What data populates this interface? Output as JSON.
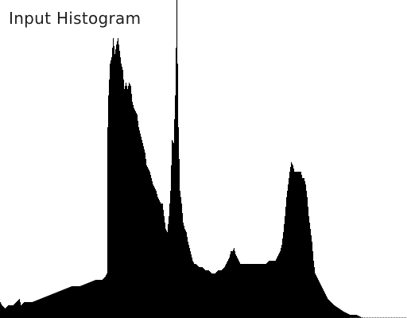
{
  "chart_data": {
    "type": "histogram",
    "title": "Input Histogram",
    "xlabel": "",
    "ylabel": "",
    "grid": false,
    "legend": "none",
    "bar_color": "#000000",
    "background_color": "#ffffff",
    "ylim": [
      0,
      100
    ],
    "keypoints": [
      [
        0,
        5
      ],
      [
        2,
        4
      ],
      [
        6,
        3
      ],
      [
        10,
        4
      ],
      [
        16,
        4
      ],
      [
        20,
        5
      ],
      [
        24,
        6
      ],
      [
        26,
        4
      ],
      [
        30,
        5
      ],
      [
        40,
        5
      ],
      [
        50,
        6
      ],
      [
        60,
        7
      ],
      [
        70,
        8
      ],
      [
        80,
        9
      ],
      [
        90,
        10
      ],
      [
        100,
        10
      ],
      [
        110,
        11
      ],
      [
        120,
        12
      ],
      [
        128,
        12
      ],
      [
        132,
        13
      ],
      [
        134,
        14
      ],
      [
        135,
        60
      ],
      [
        136,
        70
      ],
      [
        138,
        80
      ],
      [
        140,
        82
      ],
      [
        142,
        88
      ],
      [
        144,
        83
      ],
      [
        146,
        86
      ],
      [
        148,
        88
      ],
      [
        150,
        84
      ],
      [
        152,
        80
      ],
      [
        154,
        78
      ],
      [
        156,
        72
      ],
      [
        158,
        74
      ],
      [
        160,
        72
      ],
      [
        162,
        74
      ],
      [
        164,
        73
      ],
      [
        166,
        68
      ],
      [
        168,
        66
      ],
      [
        170,
        65
      ],
      [
        172,
        64
      ],
      [
        174,
        60
      ],
      [
        176,
        58
      ],
      [
        178,
        56
      ],
      [
        180,
        54
      ],
      [
        182,
        52
      ],
      [
        184,
        48
      ],
      [
        186,
        47
      ],
      [
        188,
        46
      ],
      [
        190,
        44
      ],
      [
        192,
        42
      ],
      [
        194,
        41
      ],
      [
        196,
        40
      ],
      [
        198,
        38
      ],
      [
        200,
        37
      ],
      [
        202,
        36
      ],
      [
        204,
        36
      ],
      [
        206,
        32
      ],
      [
        208,
        28
      ],
      [
        210,
        27
      ],
      [
        212,
        32
      ],
      [
        214,
        40
      ],
      [
        216,
        56
      ],
      [
        218,
        55
      ],
      [
        220,
        70
      ],
      [
        222,
        100
      ],
      [
        224,
        60
      ],
      [
        226,
        40
      ],
      [
        228,
        36
      ],
      [
        230,
        30
      ],
      [
        232,
        28
      ],
      [
        234,
        27
      ],
      [
        236,
        24
      ],
      [
        238,
        22
      ],
      [
        240,
        20
      ],
      [
        242,
        18
      ],
      [
        244,
        17
      ],
      [
        246,
        17
      ],
      [
        250,
        16
      ],
      [
        254,
        16
      ],
      [
        258,
        15
      ],
      [
        262,
        15
      ],
      [
        266,
        14
      ],
      [
        270,
        14
      ],
      [
        274,
        15
      ],
      [
        278,
        15
      ],
      [
        282,
        16
      ],
      [
        284,
        17
      ],
      [
        286,
        18
      ],
      [
        288,
        19
      ],
      [
        290,
        21
      ],
      [
        292,
        21
      ],
      [
        294,
        22
      ],
      [
        296,
        20
      ],
      [
        298,
        19
      ],
      [
        300,
        18
      ],
      [
        302,
        17
      ],
      [
        306,
        17
      ],
      [
        310,
        17
      ],
      [
        314,
        17
      ],
      [
        318,
        17
      ],
      [
        322,
        17
      ],
      [
        326,
        17
      ],
      [
        330,
        17
      ],
      [
        334,
        17
      ],
      [
        338,
        18
      ],
      [
        342,
        18
      ],
      [
        346,
        18
      ],
      [
        348,
        19
      ],
      [
        350,
        20
      ],
      [
        352,
        21
      ],
      [
        354,
        23
      ],
      [
        356,
        27
      ],
      [
        358,
        32
      ],
      [
        360,
        38
      ],
      [
        362,
        42
      ],
      [
        364,
        46
      ],
      [
        366,
        49
      ],
      [
        368,
        48
      ],
      [
        370,
        46
      ],
      [
        372,
        46
      ],
      [
        374,
        46
      ],
      [
        376,
        46
      ],
      [
        378,
        46
      ],
      [
        380,
        44
      ],
      [
        382,
        44
      ],
      [
        384,
        42
      ],
      [
        386,
        38
      ],
      [
        388,
        32
      ],
      [
        390,
        28
      ],
      [
        392,
        24
      ],
      [
        394,
        18
      ],
      [
        396,
        14
      ],
      [
        398,
        13
      ],
      [
        400,
        12
      ],
      [
        404,
        10
      ],
      [
        408,
        8
      ],
      [
        412,
        6
      ],
      [
        416,
        5
      ],
      [
        420,
        4
      ],
      [
        426,
        3
      ],
      [
        432,
        2
      ],
      [
        440,
        1
      ],
      [
        448,
        1
      ],
      [
        456,
        0
      ],
      [
        511,
        0
      ]
    ]
  }
}
